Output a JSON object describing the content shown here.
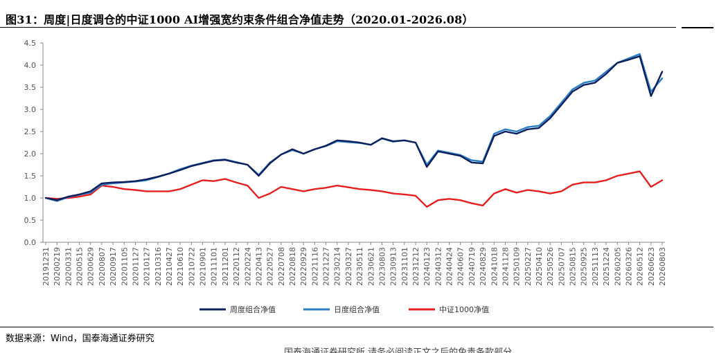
{
  "title": "图31：周度|日度调仓的中证1000 AI增强宽约束条件组合净值走势（2020.01-2026.08）",
  "source": "数据来源：Wind，国泰海通证券研究",
  "trailing_text": "国泰海通证券研究所 请务必阅读正文之后的免责条款部分",
  "chart_data": {
    "type": "line",
    "title": "",
    "xlabel": "",
    "ylabel": "",
    "ylim": [
      0,
      4.5
    ],
    "yticks": [
      "0.0",
      "0.5",
      "1.0",
      "1.5",
      "2.0",
      "2.5",
      "3.0",
      "3.5",
      "4.0",
      "4.5"
    ],
    "grid": false,
    "legend_position": "bottom",
    "x": [
      "20191231",
      "20200219",
      "20200331",
      "20200515",
      "20200629",
      "20200807",
      "20200917",
      "20201105",
      "20201127",
      "20210127",
      "20210316",
      "20210427",
      "20210610",
      "20210722",
      "20210901",
      "20211101",
      "20211201",
      "20220112",
      "20220224",
      "20220413",
      "20220527",
      "20220708",
      "20220818",
      "20220929",
      "20221116",
      "20221227",
      "20230214",
      "20230327",
      "20230511",
      "20230621",
      "20230803",
      "20230913",
      "20231101",
      "20231212",
      "20240123",
      "20240312",
      "20240424",
      "20240607",
      "20240719",
      "20240829",
      "20241018",
      "20241128",
      "20250109",
      "20250227",
      "20250410",
      "20250526",
      "20250707",
      "20250815",
      "20250925",
      "20251113",
      "20251224",
      "20260205",
      "20260326",
      "20260512",
      "20260623",
      "20260803"
    ],
    "series": [
      {
        "name": "周度组合净值",
        "color": "#0b1f5c",
        "values": [
          1.0,
          0.95,
          1.03,
          1.08,
          1.15,
          1.33,
          1.35,
          1.36,
          1.38,
          1.42,
          1.48,
          1.55,
          1.63,
          1.72,
          1.78,
          1.84,
          1.86,
          1.8,
          1.75,
          1.5,
          1.78,
          1.98,
          2.1,
          2.0,
          2.1,
          2.18,
          2.3,
          2.28,
          2.25,
          2.2,
          2.35,
          2.28,
          2.3,
          2.25,
          1.7,
          2.05,
          2.0,
          1.95,
          1.8,
          1.78,
          2.4,
          2.5,
          2.45,
          2.55,
          2.58,
          2.8,
          3.1,
          3.4,
          3.55,
          3.6,
          3.8,
          4.05,
          4.12,
          4.2,
          3.3,
          3.85
        ]
      },
      {
        "name": "日度组合净值",
        "color": "#2a7ec6",
        "values": [
          1.0,
          0.93,
          1.02,
          1.07,
          1.12,
          1.3,
          1.33,
          1.35,
          1.37,
          1.4,
          1.47,
          1.55,
          1.65,
          1.73,
          1.79,
          1.85,
          1.87,
          1.81,
          1.75,
          1.52,
          1.8,
          1.98,
          2.08,
          2.0,
          2.1,
          2.17,
          2.28,
          2.26,
          2.24,
          2.2,
          2.34,
          2.27,
          2.3,
          2.25,
          1.75,
          2.07,
          2.02,
          1.97,
          1.85,
          1.82,
          2.45,
          2.55,
          2.5,
          2.6,
          2.63,
          2.85,
          3.15,
          3.45,
          3.6,
          3.65,
          3.85,
          4.05,
          4.15,
          4.25,
          3.4,
          3.7
        ]
      },
      {
        "name": "中证1000净值",
        "color": "#e61e1e",
        "values": [
          1.0,
          0.98,
          1.0,
          1.03,
          1.08,
          1.28,
          1.25,
          1.2,
          1.18,
          1.15,
          1.15,
          1.15,
          1.2,
          1.3,
          1.4,
          1.38,
          1.43,
          1.35,
          1.28,
          1.0,
          1.1,
          1.25,
          1.2,
          1.15,
          1.2,
          1.23,
          1.28,
          1.24,
          1.2,
          1.18,
          1.15,
          1.1,
          1.08,
          1.05,
          0.8,
          0.95,
          0.98,
          0.95,
          0.88,
          0.83,
          1.1,
          1.2,
          1.12,
          1.18,
          1.15,
          1.1,
          1.15,
          1.3,
          1.35,
          1.35,
          1.4,
          1.5,
          1.55,
          1.6,
          1.25,
          1.4
        ]
      }
    ]
  }
}
